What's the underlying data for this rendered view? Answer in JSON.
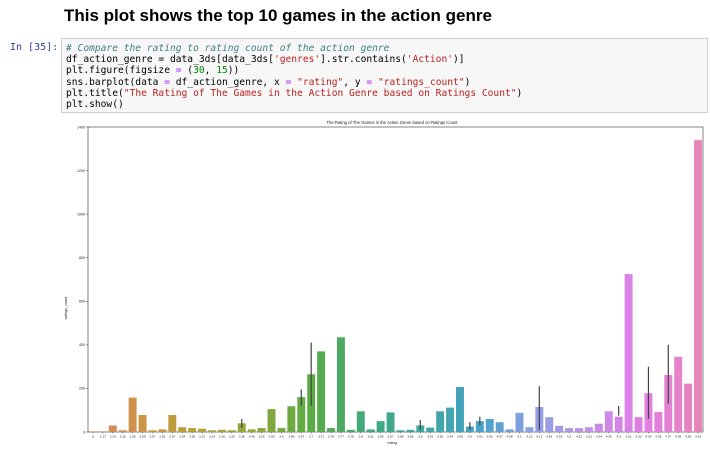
{
  "notebook": {
    "heading": "This plot shows the top 10 games in the action genre",
    "prompt": "In [35]:",
    "code_lines": [
      [
        {
          "t": "# Compare the rating to rating count of the action genre",
          "c": "cm"
        }
      ],
      [
        {
          "t": "df_action_genre = data_3ds[data_3ds[",
          "c": ""
        },
        {
          "t": "'genres'",
          "c": "st"
        },
        {
          "t": "].str.contains(",
          "c": ""
        },
        {
          "t": "'Action'",
          "c": "st"
        },
        {
          "t": ")]",
          "c": ""
        }
      ],
      [
        {
          "t": "plt.figure(figsize ",
          "c": ""
        },
        {
          "t": "=",
          "c": "op"
        },
        {
          "t": " (",
          "c": ""
        },
        {
          "t": "30",
          "c": "nu"
        },
        {
          "t": ", ",
          "c": ""
        },
        {
          "t": "15",
          "c": "nu"
        },
        {
          "t": "))",
          "c": ""
        }
      ],
      [
        {
          "t": "sns.barplot(data ",
          "c": ""
        },
        {
          "t": "=",
          "c": "op"
        },
        {
          "t": " df_action_genre, x ",
          "c": ""
        },
        {
          "t": "=",
          "c": "op"
        },
        {
          "t": " ",
          "c": ""
        },
        {
          "t": "\"rating\"",
          "c": "st"
        },
        {
          "t": ", y ",
          "c": ""
        },
        {
          "t": "=",
          "c": "op"
        },
        {
          "t": " ",
          "c": ""
        },
        {
          "t": "\"ratings_count\"",
          "c": "st"
        },
        {
          "t": ")",
          "c": ""
        }
      ],
      [
        {
          "t": "plt.title(",
          "c": ""
        },
        {
          "t": "\"The Rating of The Games in the Action Genre based on Ratings Count\"",
          "c": "st"
        },
        {
          "t": ")",
          "c": ""
        }
      ],
      [
        {
          "t": "plt.show()",
          "c": ""
        }
      ]
    ]
  },
  "chart_data": {
    "type": "bar",
    "title": "The Rating of The Games in the Action Genre based on Ratings Count",
    "xlabel": "rating",
    "ylabel": "ratings_count",
    "ylim": [
      0,
      1400
    ],
    "yticks": [
      0,
      200,
      400,
      600,
      800,
      1000,
      1200,
      1400
    ],
    "grid": false,
    "categories": [
      "0",
      "2.17",
      "2.24",
      "2.35",
      "2.56",
      "2.59",
      "2.67",
      "2.82",
      "2.87",
      "2.94",
      "3.05",
      "3.12",
      "3.14",
      "3.16",
      "3.26",
      "3.38",
      "3.46",
      "3.52",
      "3.65",
      "3.6",
      "3.66",
      "3.67",
      "3.7",
      "3.71",
      "3.76",
      "3.77",
      "3.78",
      "3.8",
      "3.81",
      "3.85",
      "3.87",
      "3.88",
      "3.89",
      "3.9",
      "3.91",
      "3.92",
      "3.94",
      "3.95",
      "4.0",
      "4.01",
      "4.06",
      "4.07",
      "4.08",
      "4.1",
      "4.12",
      "4.13",
      "4.16",
      "4.19",
      "4.2",
      "4.21",
      "4.22",
      "4.24",
      "4.26",
      "4.3",
      "4.31",
      "4.33",
      "4.34",
      "4.35",
      "4.37",
      "4.38",
      "4.39",
      "4.41"
    ],
    "values": [
      3,
      3,
      30,
      8,
      158,
      78,
      8,
      12,
      78,
      22,
      18,
      15,
      8,
      10,
      8,
      40,
      12,
      18,
      105,
      18,
      118,
      160,
      265,
      370,
      18,
      435,
      10,
      95,
      12,
      50,
      90,
      8,
      10,
      30,
      20,
      95,
      112,
      207,
      25,
      50,
      60,
      45,
      12,
      88,
      22,
      115,
      68,
      28,
      18,
      18,
      22,
      38,
      95,
      70,
      725,
      68,
      178,
      92,
      262,
      345,
      222,
      1340
    ],
    "error_bars": [
      {
        "category": "3.38",
        "low": 20,
        "high": 60
      },
      {
        "category": "3.67",
        "low": 120,
        "high": 195
      },
      {
        "category": "3.7",
        "low": 120,
        "high": 410
      },
      {
        "category": "3.9",
        "low": 10,
        "high": 55
      },
      {
        "category": "4.0",
        "low": 10,
        "high": 45
      },
      {
        "category": "4.01",
        "low": 30,
        "high": 70
      },
      {
        "category": "4.13",
        "low": 10,
        "high": 210
      },
      {
        "category": "4.3",
        "low": 75,
        "high": 120
      },
      {
        "category": "4.34",
        "low": 60,
        "high": 300
      },
      {
        "category": "4.37",
        "low": 130,
        "high": 400
      }
    ],
    "palette": [
      "#d98a64",
      "#cc9540",
      "#b0a23a",
      "#8da63b",
      "#5aac46",
      "#3fa87f",
      "#3ea79c",
      "#47a2c8",
      "#8ea0e3",
      "#c290e8",
      "#e27ee5",
      "#e685b9"
    ]
  }
}
